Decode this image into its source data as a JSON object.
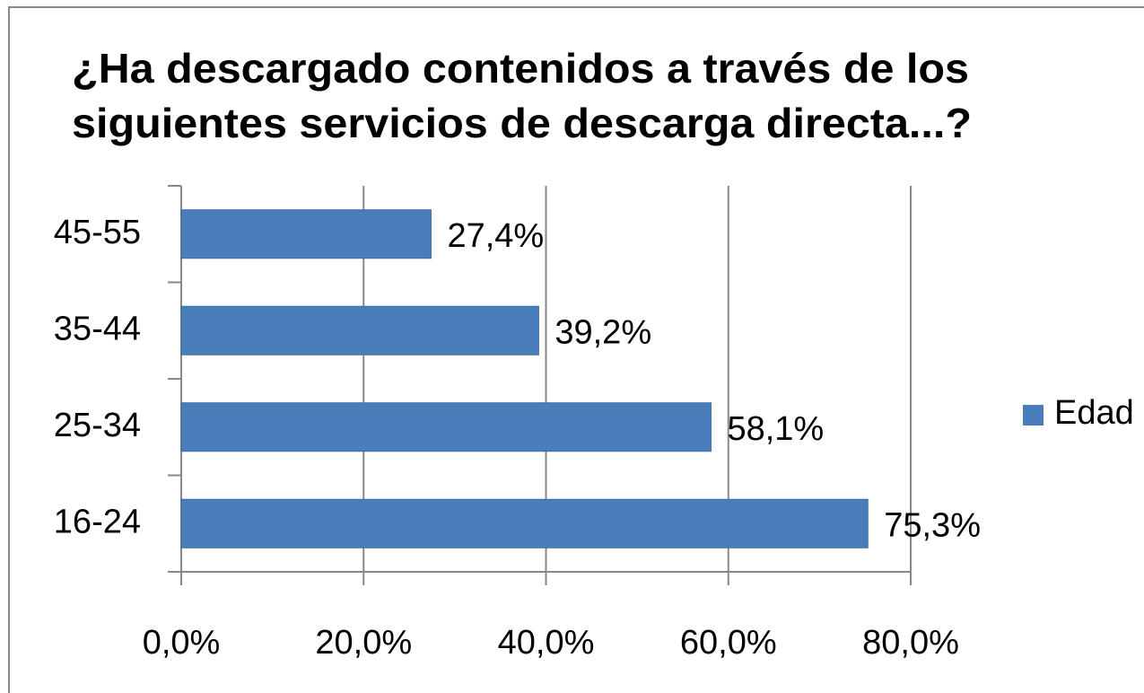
{
  "chart_data": {
    "type": "bar",
    "title": [
      "¿Ha descargado contenidos a través de los",
      "siguientes servicios de descarga directa...?"
    ],
    "categories": [
      "16-24",
      "25-34",
      "35-44",
      "45-55"
    ],
    "series": [
      {
        "name": "Edad",
        "color": "#4a7ebb",
        "values": [
          75.3,
          58.1,
          39.2,
          27.4
        ],
        "value_labels": [
          "75,3%",
          "58,1%",
          "39,2%",
          "27,4%"
        ]
      }
    ],
    "xlim": [
      0,
      80
    ],
    "xticks": [
      {
        "value": 0,
        "label": "0,0%"
      },
      {
        "value": 20,
        "label": "20,0%"
      },
      {
        "value": 40,
        "label": "40,0%"
      },
      {
        "value": 60,
        "label": "60,0%"
      },
      {
        "value": 80,
        "label": "80,0%"
      }
    ],
    "grid": true,
    "legend": "right"
  }
}
